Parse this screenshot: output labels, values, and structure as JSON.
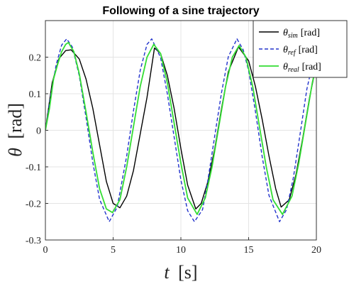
{
  "chart_data": {
    "type": "line",
    "title": "Following of a sine trajectory",
    "xlabel_symbol": "t",
    "xlabel_unit": "[s]",
    "ylabel_symbol": "θ",
    "ylabel_unit": "[rad]",
    "xlim": [
      0,
      20
    ],
    "ylim": [
      -0.3,
      0.3
    ],
    "xticks": [
      0,
      5,
      10,
      15,
      20
    ],
    "yticks": [
      -0.3,
      -0.2,
      -0.1,
      0,
      0.1,
      0.2
    ],
    "xtick_labels": [
      "0",
      "5",
      "10",
      "15",
      "20"
    ],
    "ytick_labels": [
      "-0.3",
      "-0.2",
      "-0.1",
      "0",
      "0.1",
      "0.2"
    ],
    "grid": true,
    "legend_position": "top-right",
    "series": [
      {
        "name_symbol": "θ",
        "name_sub": "sim",
        "name_unit": "[rad]",
        "color": "#000000",
        "dash": "solid",
        "x": [
          0,
          0.5,
          1,
          1.5,
          1.9,
          2.5,
          3,
          3.5,
          4,
          4.5,
          5,
          5.5,
          6,
          6.5,
          7,
          7.5,
          8.05,
          8.5,
          9,
          9.5,
          10,
          10.5,
          11.1,
          11.5,
          12,
          12.5,
          13,
          13.5,
          14.25,
          15,
          15.5,
          16,
          16.5,
          17,
          17.4,
          18,
          18.5,
          19,
          19.5,
          20
        ],
        "y": [
          0,
          0.13,
          0.196,
          0.218,
          0.22,
          0.195,
          0.14,
          0.06,
          -0.04,
          -0.14,
          -0.2,
          -0.212,
          -0.18,
          -0.11,
          -0.01,
          0.09,
          0.225,
          0.21,
          0.15,
          0.06,
          -0.05,
          -0.15,
          -0.215,
          -0.2,
          -0.14,
          -0.05,
          0.06,
          0.16,
          0.228,
          0.19,
          0.12,
          0.03,
          -0.07,
          -0.16,
          -0.21,
          -0.19,
          -0.12,
          -0.02,
          0.09,
          0.18
        ]
      },
      {
        "name_symbol": "θ",
        "name_sub": "ref",
        "name_unit": "[rad]",
        "color": "#2233cc",
        "dash": "dashed",
        "x": [
          0,
          0.4,
          0.8,
          1.2,
          1.57,
          2,
          2.5,
          3,
          3.5,
          4,
          4.71,
          5.3,
          6,
          6.5,
          7,
          7.5,
          7.85,
          8.5,
          9,
          9.5,
          10,
          10.5,
          11,
          11.6,
          12,
          12.5,
          13,
          13.5,
          14.14,
          14.6,
          15,
          15.5,
          16,
          16.5,
          17.28,
          17.8,
          18.3,
          18.8,
          19.3,
          20
        ],
        "y": [
          0,
          0.097,
          0.18,
          0.233,
          0.25,
          0.227,
          0.149,
          0.035,
          -0.088,
          -0.189,
          -0.25,
          -0.21,
          -0.07,
          0.053,
          0.164,
          0.235,
          0.25,
          0.199,
          0.1,
          -0.018,
          -0.136,
          -0.22,
          -0.25,
          -0.217,
          -0.135,
          -0.015,
          0.103,
          0.201,
          0.25,
          0.22,
          0.163,
          0.052,
          -0.072,
          -0.178,
          -0.25,
          -0.217,
          -0.13,
          -0.01,
          0.113,
          0.228
        ]
      },
      {
        "name_symbol": "θ",
        "name_sub": "real",
        "name_unit": "[rad]",
        "color": "#33dd33",
        "dash": "solid",
        "x": [
          0,
          0.3,
          0.6,
          0.9,
          1.2,
          1.5,
          1.7,
          2.1,
          2.5,
          3,
          3.5,
          4,
          4.5,
          4.95,
          5.5,
          6,
          6.5,
          7,
          7.5,
          8,
          8.5,
          9,
          9.5,
          10,
          10.5,
          11.2,
          11.8,
          12.3,
          12.8,
          13.3,
          13.8,
          14.3,
          14.8,
          15.3,
          15.8,
          16.3,
          16.8,
          17.5,
          18.2,
          18.7,
          19.2,
          19.7,
          20
        ],
        "y": [
          0,
          0.06,
          0.14,
          0.18,
          0.215,
          0.235,
          0.24,
          0.215,
          0.155,
          0.05,
          -0.06,
          -0.16,
          -0.215,
          -0.225,
          -0.19,
          -0.1,
          0.01,
          0.12,
          0.2,
          0.235,
          0.21,
          0.13,
          0.02,
          -0.09,
          -0.185,
          -0.23,
          -0.185,
          -0.1,
          0.01,
          0.12,
          0.2,
          0.232,
          0.2,
          0.12,
          0.01,
          -0.1,
          -0.19,
          -0.23,
          -0.18,
          -0.09,
          0.02,
          0.13,
          0.18
        ]
      }
    ]
  }
}
